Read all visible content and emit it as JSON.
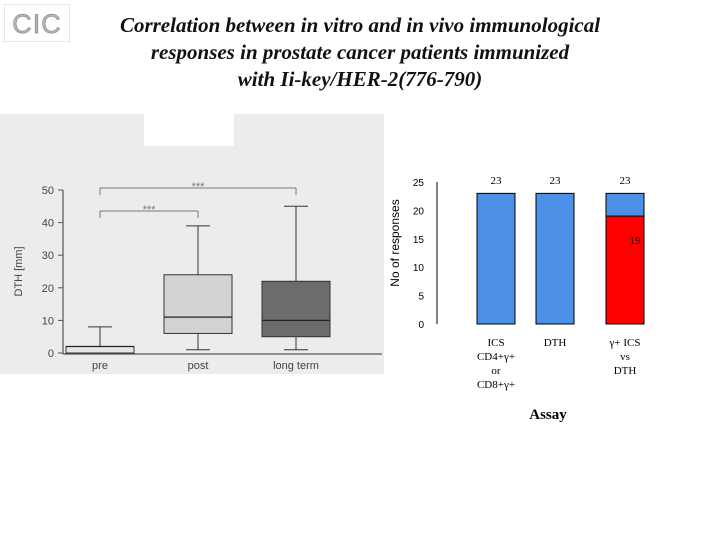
{
  "logo": {
    "text": "CIC",
    "colors": {
      "gray": "#a8a8a8",
      "light": "#d8d8d8"
    }
  },
  "title": {
    "line1": "Correlation between in vitro and in vivo immunological",
    "line2": "responses in prostate cancer patients immunized",
    "line3": "with Ii-key/HER-2(776-790)"
  },
  "chart_data": [
    {
      "type": "box",
      "ylabel": "DTH [mm]",
      "ylim": [
        0,
        50
      ],
      "yticks": [
        "0",
        "10",
        "20",
        "30",
        "40",
        "50"
      ],
      "categories": [
        "pre",
        "post",
        "long term"
      ],
      "boxes": [
        {
          "category": "pre",
          "min": 0,
          "q1": 0,
          "median": 2,
          "q3": 2,
          "max": 8,
          "color": "#e6e6e6"
        },
        {
          "category": "post",
          "min": 1,
          "q1": 6,
          "median": 11,
          "q3": 24,
          "max": 39,
          "color": "#d2d2d2"
        },
        {
          "category": "long term",
          "min": 1,
          "q1": 5,
          "median": 10,
          "q3": 22,
          "max": 45,
          "color": "#6c6c6c"
        }
      ],
      "significance": [
        {
          "from": "pre",
          "to": "post",
          "label": "***"
        },
        {
          "from": "pre",
          "to": "long term",
          "label": "***"
        }
      ]
    },
    {
      "type": "bar",
      "xlabel": "Assay",
      "ylabel": "No of responses",
      "ylim": [
        0,
        25
      ],
      "yticks": [
        "0",
        "5",
        "10",
        "15",
        "20",
        "25"
      ],
      "categories": [
        {
          "lines": [
            "ICS",
            "CD4+γ+",
            "or",
            "CD8+γ+"
          ]
        },
        {
          "lines": [
            "DTH"
          ]
        },
        {
          "lines": [
            "γ+ ICS",
            "vs",
            "DTH"
          ]
        }
      ],
      "bars": [
        {
          "total": 23,
          "total_label": "23",
          "red": 0
        },
        {
          "total": 23,
          "total_label": "23",
          "red": 0
        },
        {
          "total": 23,
          "total_label": "23",
          "red": 19,
          "red_label": "19"
        }
      ],
      "colors": {
        "blue": "#4d90e8",
        "red": "#ff0000",
        "outline": "#000000"
      }
    }
  ]
}
